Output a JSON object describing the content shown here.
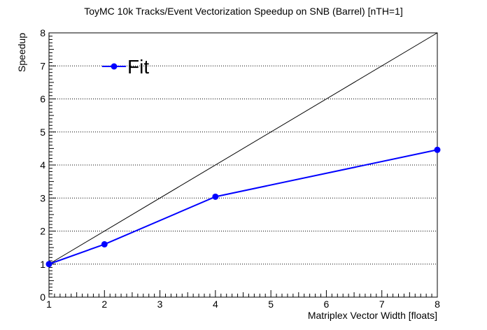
{
  "chart_data": {
    "type": "line",
    "title": "ToyMC 10k Tracks/Event Vectorization Speedup on SNB (Barrel) [nTH=1]",
    "xlabel": "Matriplex Vector Width [floats]",
    "ylabel": "Speedup",
    "xlim": [
      1,
      8
    ],
    "ylim": [
      0,
      8
    ],
    "x_ticks": [
      "1",
      "2",
      "3",
      "4",
      "5",
      "6",
      "7",
      "8"
    ],
    "y_ticks": [
      "0",
      "1",
      "2",
      "3",
      "4",
      "5",
      "6",
      "7",
      "8"
    ],
    "grid": "horizontal dotted",
    "legend_position": "top-left",
    "series": [
      {
        "name": "Fit",
        "x": [
          1,
          2,
          4,
          8
        ],
        "y": [
          1.0,
          1.6,
          3.04,
          4.46
        ],
        "color": "#0000ff",
        "marker": "circle"
      }
    ],
    "reference_line": {
      "x": [
        1,
        8
      ],
      "y": [
        1,
        8
      ],
      "color": "#000000"
    }
  }
}
